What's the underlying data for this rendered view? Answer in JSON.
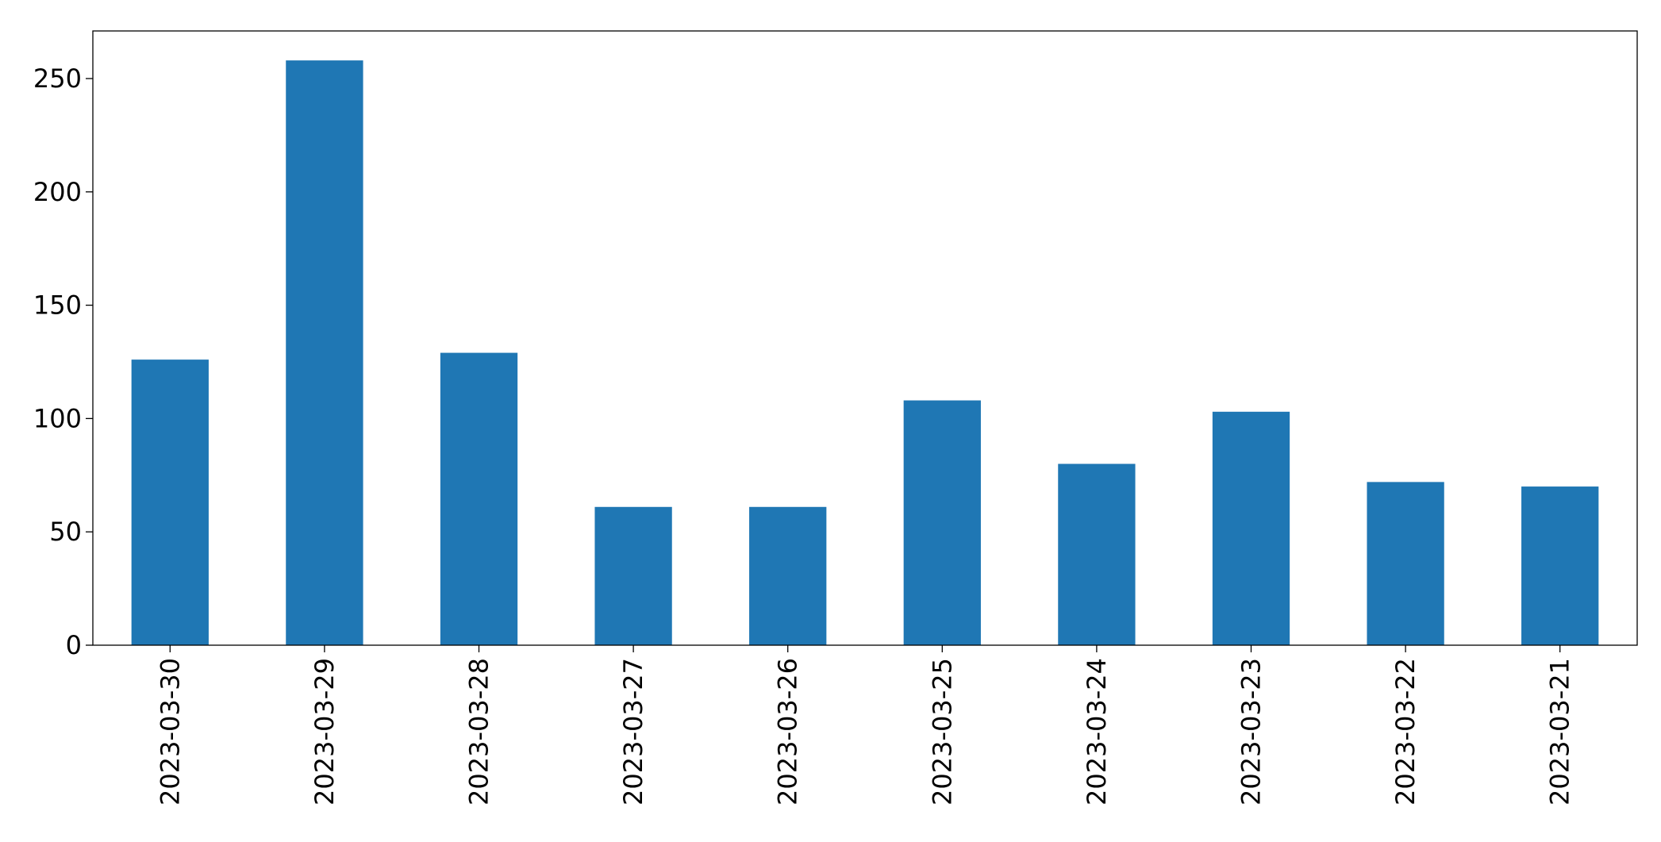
{
  "chart_data": {
    "type": "bar",
    "categories": [
      "2023-03-30",
      "2023-03-29",
      "2023-03-28",
      "2023-03-27",
      "2023-03-26",
      "2023-03-25",
      "2023-03-24",
      "2023-03-23",
      "2023-03-22",
      "2023-03-21"
    ],
    "values": [
      126,
      258,
      129,
      61,
      61,
      108,
      80,
      103,
      72,
      70
    ],
    "color": "#1f77b4",
    "ylim": [
      0,
      271
    ],
    "yticks": [
      0,
      50,
      100,
      150,
      200,
      250
    ],
    "grid": false
  }
}
